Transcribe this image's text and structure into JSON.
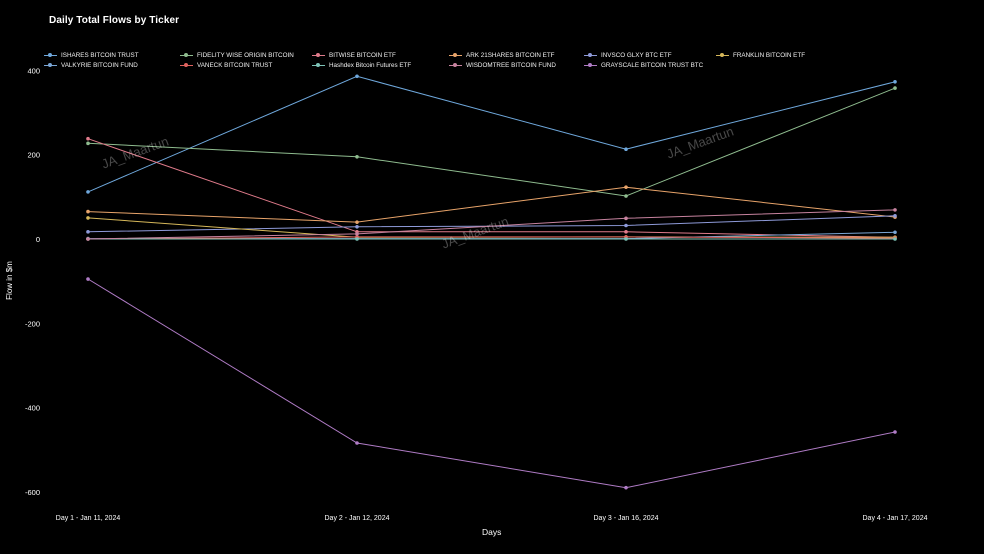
{
  "chart_data": {
    "type": "line",
    "title": "Daily Total Flows by Ticker",
    "xlabel": "Days",
    "ylabel": "Flow in $m",
    "categories": [
      "Day 1 - Jan 11, 2024",
      "Day 2 - Jan 12, 2024",
      "Day 3 - Jan 16, 2024",
      "Day 4 - Jan 17, 2024"
    ],
    "yticks": [
      400,
      200,
      0,
      -200,
      -400,
      -600
    ],
    "ylim": [
      -640,
      410
    ],
    "legend_position": "top",
    "series": [
      {
        "name": "ISHARES BITCOIN TRUST",
        "color": "#6fa8dc",
        "values": [
          111.7,
          386,
          213,
          373
        ]
      },
      {
        "name": "FIDELITY WISE ORIGIN BITCOIN",
        "color": "#8fbc8f",
        "values": [
          227,
          195,
          102,
          358
        ]
      },
      {
        "name": "BITWISE BITCOIN ETF",
        "color": "#e07b8b",
        "values": [
          237.9,
          17,
          17,
          4
        ]
      },
      {
        "name": "ARK 21SHARES BITCOIN ETF",
        "color": "#e8a46a",
        "values": [
          65,
          40,
          123,
          52
        ]
      },
      {
        "name": "INVSCO GLXY BTC ETF",
        "color": "#8e9ad9",
        "values": [
          17,
          29,
          32,
          55
        ]
      },
      {
        "name": "FRANKLIN BITCOIN ETF",
        "color": "#d6b85a",
        "values": [
          50,
          4,
          5,
          4
        ]
      },
      {
        "name": "VALKYRIE BITCOIN FUND",
        "color": "#7aa6d6",
        "values": [
          1,
          1,
          1,
          16
        ]
      },
      {
        "name": "VANECK BITCOIN TRUST",
        "color": "#e0635f",
        "values": [
          0,
          5,
          5,
          2
        ]
      },
      {
        "name": "Hashdex Bitcoin Futures ETF",
        "color": "#7ec4b8",
        "values": [
          0,
          0,
          0,
          0
        ]
      },
      {
        "name": "WISDOMTREE BITCOIN FUND",
        "color": "#c7839f",
        "values": [
          0,
          12,
          49,
          69
        ]
      },
      {
        "name": "GRAYSCALE BITCOIN TRUST BTC",
        "color": "#b07cc6",
        "values": [
          -95,
          -484,
          -590,
          -458
        ]
      }
    ]
  },
  "watermark": "JA_Maartun"
}
